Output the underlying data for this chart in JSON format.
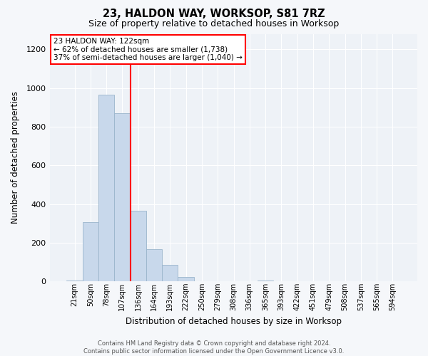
{
  "title": "23, HALDON WAY, WORKSOP, S81 7RZ",
  "subtitle": "Size of property relative to detached houses in Worksop",
  "xlabel": "Distribution of detached houses by size in Worksop",
  "ylabel": "Number of detached properties",
  "bar_color": "#c8d8eb",
  "bar_edge_color": "#9ab5cc",
  "background_color": "#eef2f7",
  "grid_color": "#ffffff",
  "fig_background": "#f5f7fa",
  "bin_labels": [
    "21sqm",
    "50sqm",
    "78sqm",
    "107sqm",
    "136sqm",
    "164sqm",
    "193sqm",
    "222sqm",
    "250sqm",
    "279sqm",
    "308sqm",
    "336sqm",
    "365sqm",
    "393sqm",
    "422sqm",
    "451sqm",
    "479sqm",
    "508sqm",
    "537sqm",
    "565sqm",
    "594sqm"
  ],
  "bar_heights": [
    5,
    305,
    965,
    870,
    365,
    168,
    85,
    22,
    2,
    0,
    0,
    0,
    5,
    0,
    0,
    2,
    0,
    0,
    0,
    0,
    0
  ],
  "ylim": [
    0,
    1280
  ],
  "yticks": [
    0,
    200,
    400,
    600,
    800,
    1000,
    1200
  ],
  "red_line_x": 3.5,
  "annotation_title": "23 HALDON WAY: 122sqm",
  "annotation_line1": "← 62% of detached houses are smaller (1,738)",
  "annotation_line2": "37% of semi-detached houses are larger (1,040) →",
  "footer_line1": "Contains HM Land Registry data © Crown copyright and database right 2024.",
  "footer_line2": "Contains public sector information licensed under the Open Government Licence v3.0."
}
